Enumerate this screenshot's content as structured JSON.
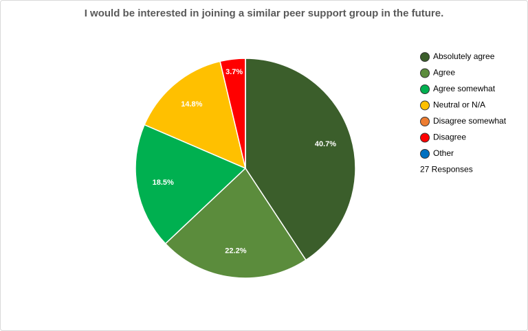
{
  "chart_data": {
    "type": "pie",
    "title": "I would be interested in joining a similar peer support group in the future.",
    "categories": [
      "Absolutely agree",
      "Agree",
      "Agree somewhat",
      "Neutral or N/A",
      "Disagree somewhat",
      "Disagree",
      "Other"
    ],
    "values": [
      40.7,
      22.2,
      18.5,
      14.8,
      0,
      3.7,
      0
    ],
    "value_labels": [
      "40.7%",
      "22.2%",
      "18.5%",
      "14.8%",
      null,
      "3.7%",
      null
    ],
    "colors": [
      "#3b5e2b",
      "#5b8c3c",
      "#00b050",
      "#ffc000",
      "#ed7d31",
      "#ff0000",
      "#0070c0"
    ],
    "legend": "right",
    "annotation": "27 Responses"
  }
}
